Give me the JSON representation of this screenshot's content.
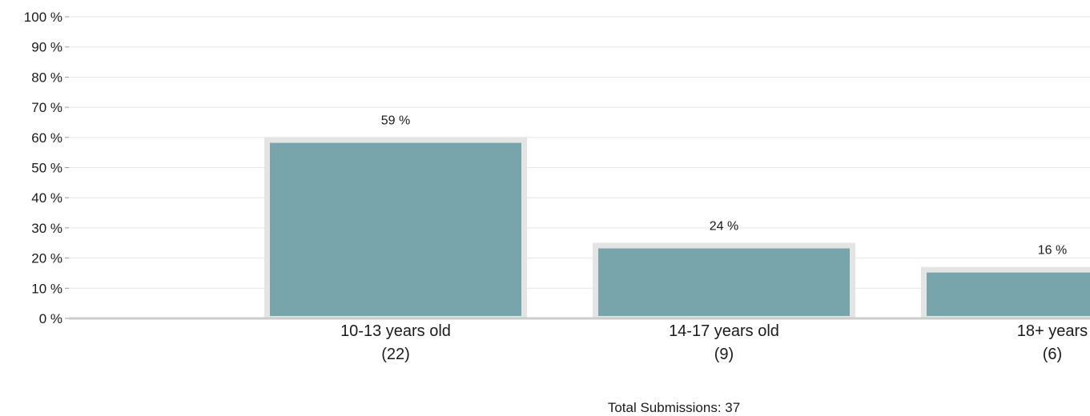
{
  "chart_data": {
    "type": "bar",
    "categories": [
      "10-13 years old",
      "14-17 years old",
      "18+ years"
    ],
    "counts": [
      "(22)",
      "(9)",
      "(6)"
    ],
    "values": [
      59,
      24,
      16
    ],
    "data_labels": [
      "59 %",
      "24 %",
      "16 %"
    ],
    "y_ticks": [
      "0 %",
      "10 %",
      "20 %",
      "30 %",
      "40 %",
      "50 %",
      "60 %",
      "70 %",
      "80 %",
      "90 %",
      "100 %"
    ],
    "ylim": [
      0,
      100
    ],
    "grid": true,
    "colors": {
      "bar": "#77a5ab",
      "bar_border": "#e4e4e4",
      "grid": "#e6e6e6",
      "axis": "#cccccc"
    }
  },
  "footer": {
    "total_text": "Total Submissions: 37"
  }
}
